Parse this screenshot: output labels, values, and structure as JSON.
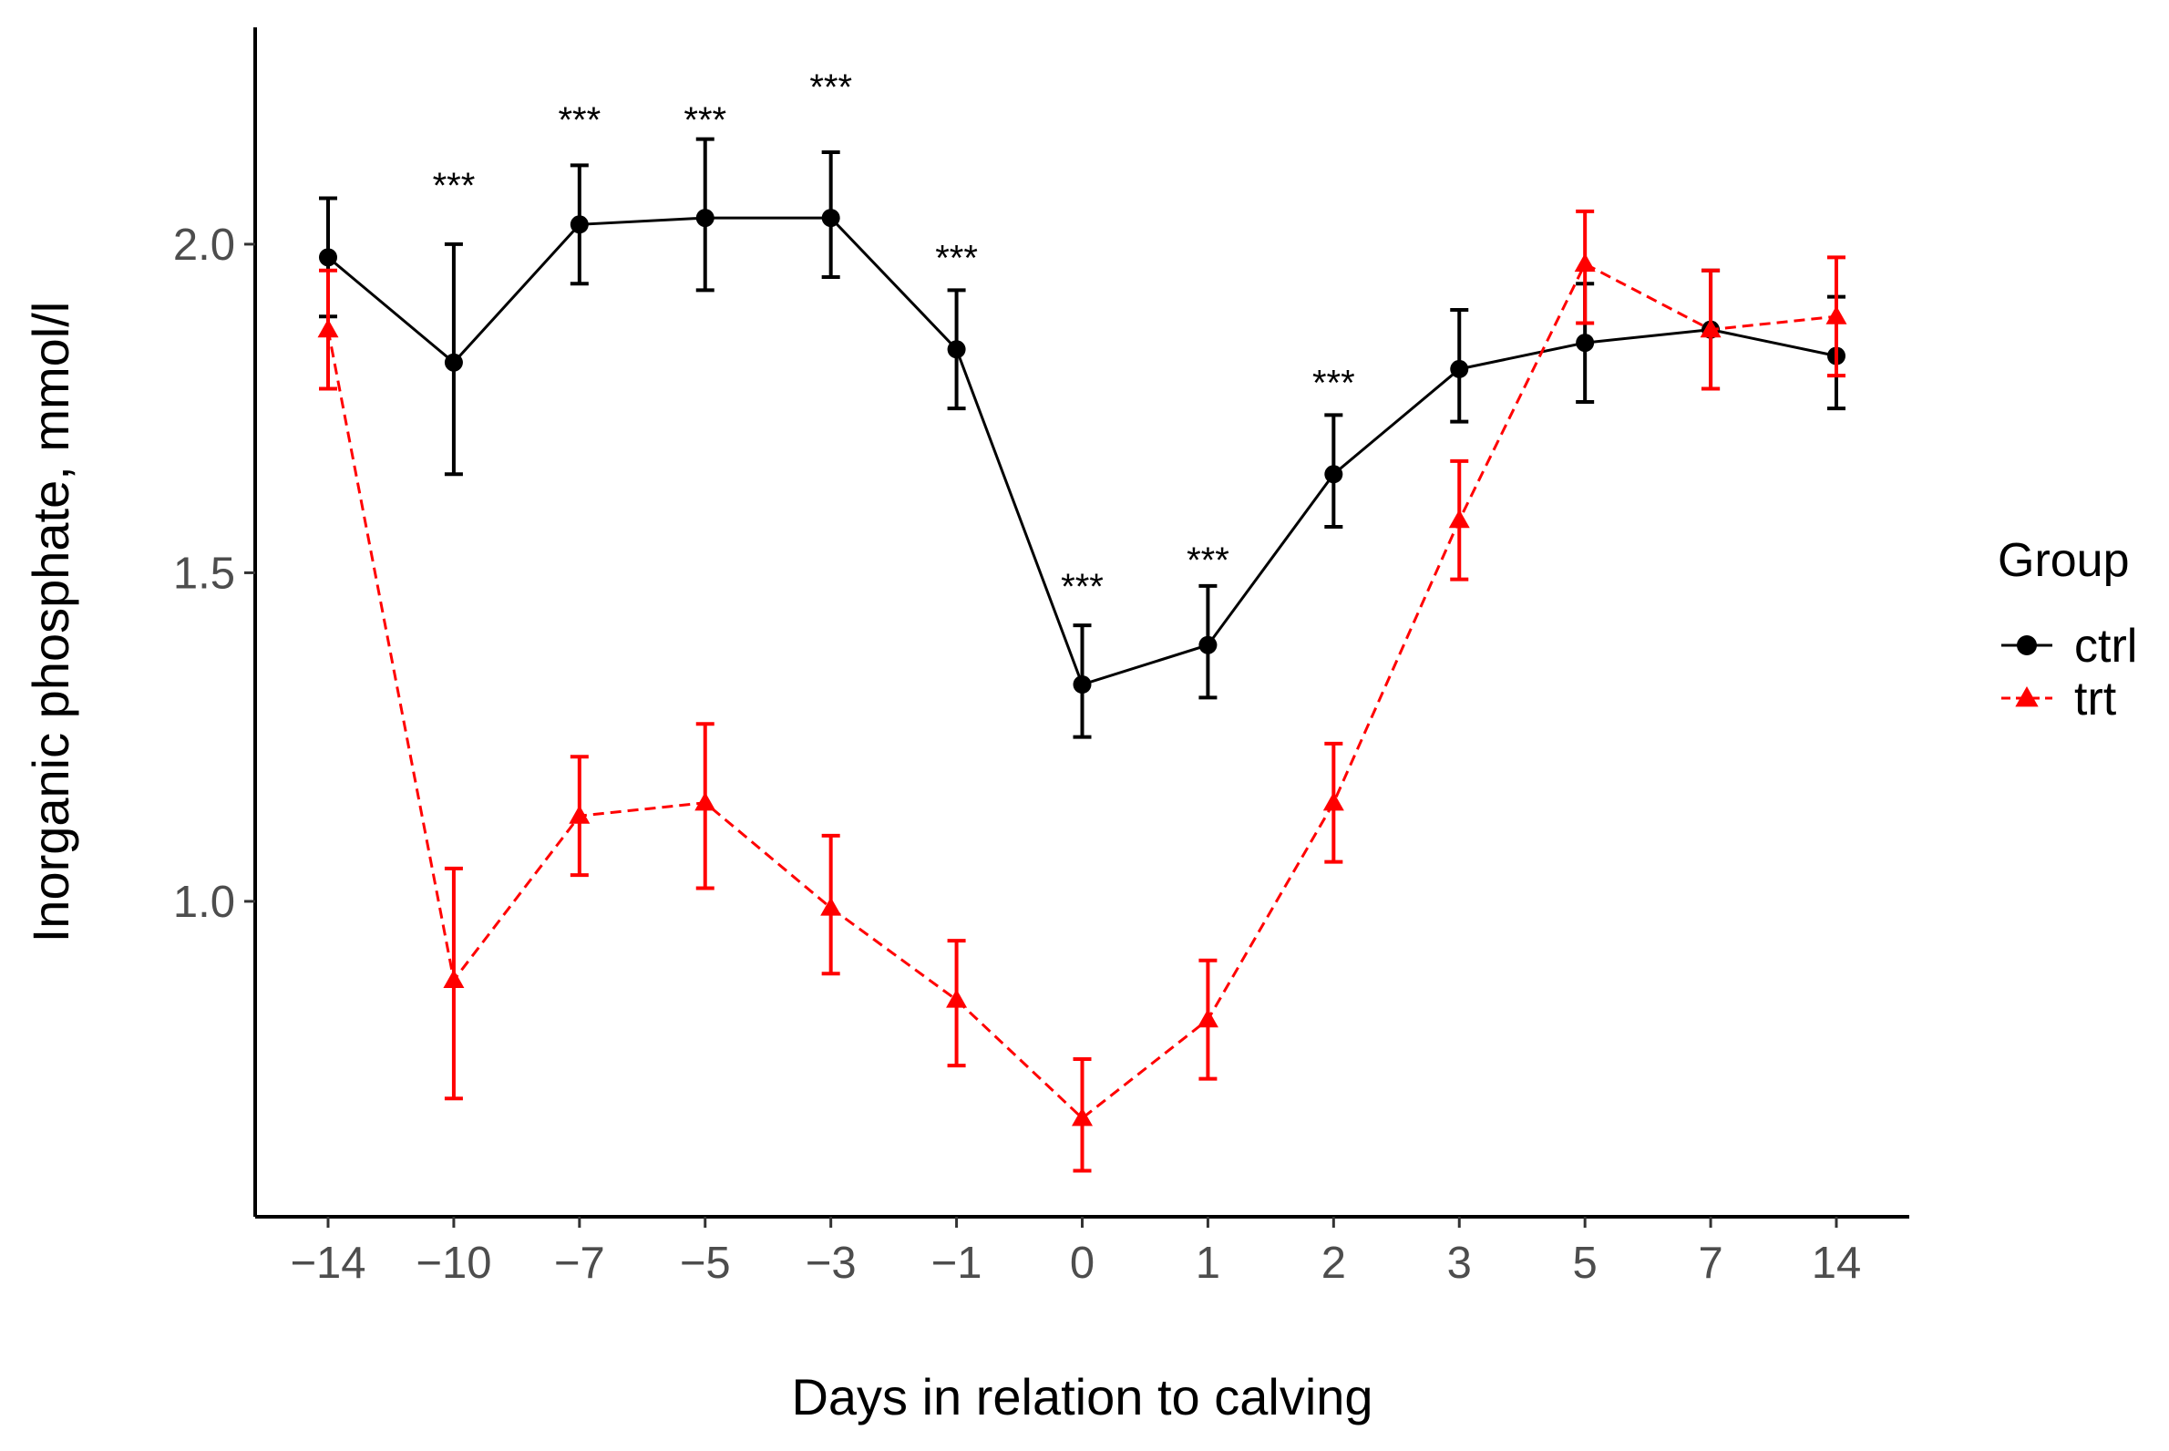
{
  "chart_data": {
    "type": "line",
    "title": "",
    "xlabel": "Days in relation to calving",
    "ylabel": "Inorganic phosphate, mmol/l",
    "categories": [
      "−14",
      "−10",
      "−7",
      "−5",
      "−3",
      "−1",
      "0",
      "1",
      "2",
      "3",
      "5",
      "7",
      "14"
    ],
    "ylim": [
      0.52,
      2.33
    ],
    "yticks": [
      "1.0",
      "1.5",
      "2.0"
    ],
    "ytick_values": [
      1.0,
      1.5,
      2.0
    ],
    "grid": false,
    "legend": {
      "title": "Group",
      "position": "right"
    },
    "series": [
      {
        "name": "ctrl",
        "color": "#000000",
        "marker": "circle",
        "line": "solid",
        "values": [
          1.98,
          1.82,
          2.03,
          2.04,
          2.04,
          1.84,
          1.33,
          1.39,
          1.65,
          1.81,
          1.85,
          1.87,
          1.83
        ],
        "lower": [
          1.89,
          1.65,
          1.94,
          1.93,
          1.95,
          1.75,
          1.25,
          1.31,
          1.57,
          1.73,
          1.76,
          1.78,
          1.75
        ],
        "upper": [
          2.07,
          2.0,
          2.12,
          2.16,
          2.14,
          1.93,
          1.42,
          1.48,
          1.74,
          1.9,
          1.94,
          1.96,
          1.92
        ]
      },
      {
        "name": "trt",
        "color": "#ff0000",
        "marker": "triangle",
        "line": "dashed",
        "values": [
          1.87,
          0.88,
          1.13,
          1.15,
          0.99,
          0.85,
          0.67,
          0.82,
          1.15,
          1.58,
          1.97,
          1.87,
          1.89
        ],
        "lower": [
          1.78,
          0.7,
          1.04,
          1.02,
          0.89,
          0.75,
          0.59,
          0.73,
          1.06,
          1.49,
          1.88,
          1.78,
          1.8
        ],
        "upper": [
          1.96,
          1.05,
          1.22,
          1.27,
          1.1,
          0.94,
          0.76,
          0.91,
          1.24,
          1.67,
          2.05,
          1.96,
          1.98
        ]
      }
    ],
    "annotations": [
      {
        "category_index": 1,
        "text": "***",
        "y": 2.09
      },
      {
        "category_index": 2,
        "text": "***",
        "y": 2.19
      },
      {
        "category_index": 3,
        "text": "***",
        "y": 2.19
      },
      {
        "category_index": 4,
        "text": "***",
        "y": 2.24
      },
      {
        "category_index": 5,
        "text": "***",
        "y": 1.98
      },
      {
        "category_index": 6,
        "text": "***",
        "y": 1.48
      },
      {
        "category_index": 7,
        "text": "***",
        "y": 1.52
      },
      {
        "category_index": 8,
        "text": "***",
        "y": 1.79
      }
    ]
  }
}
